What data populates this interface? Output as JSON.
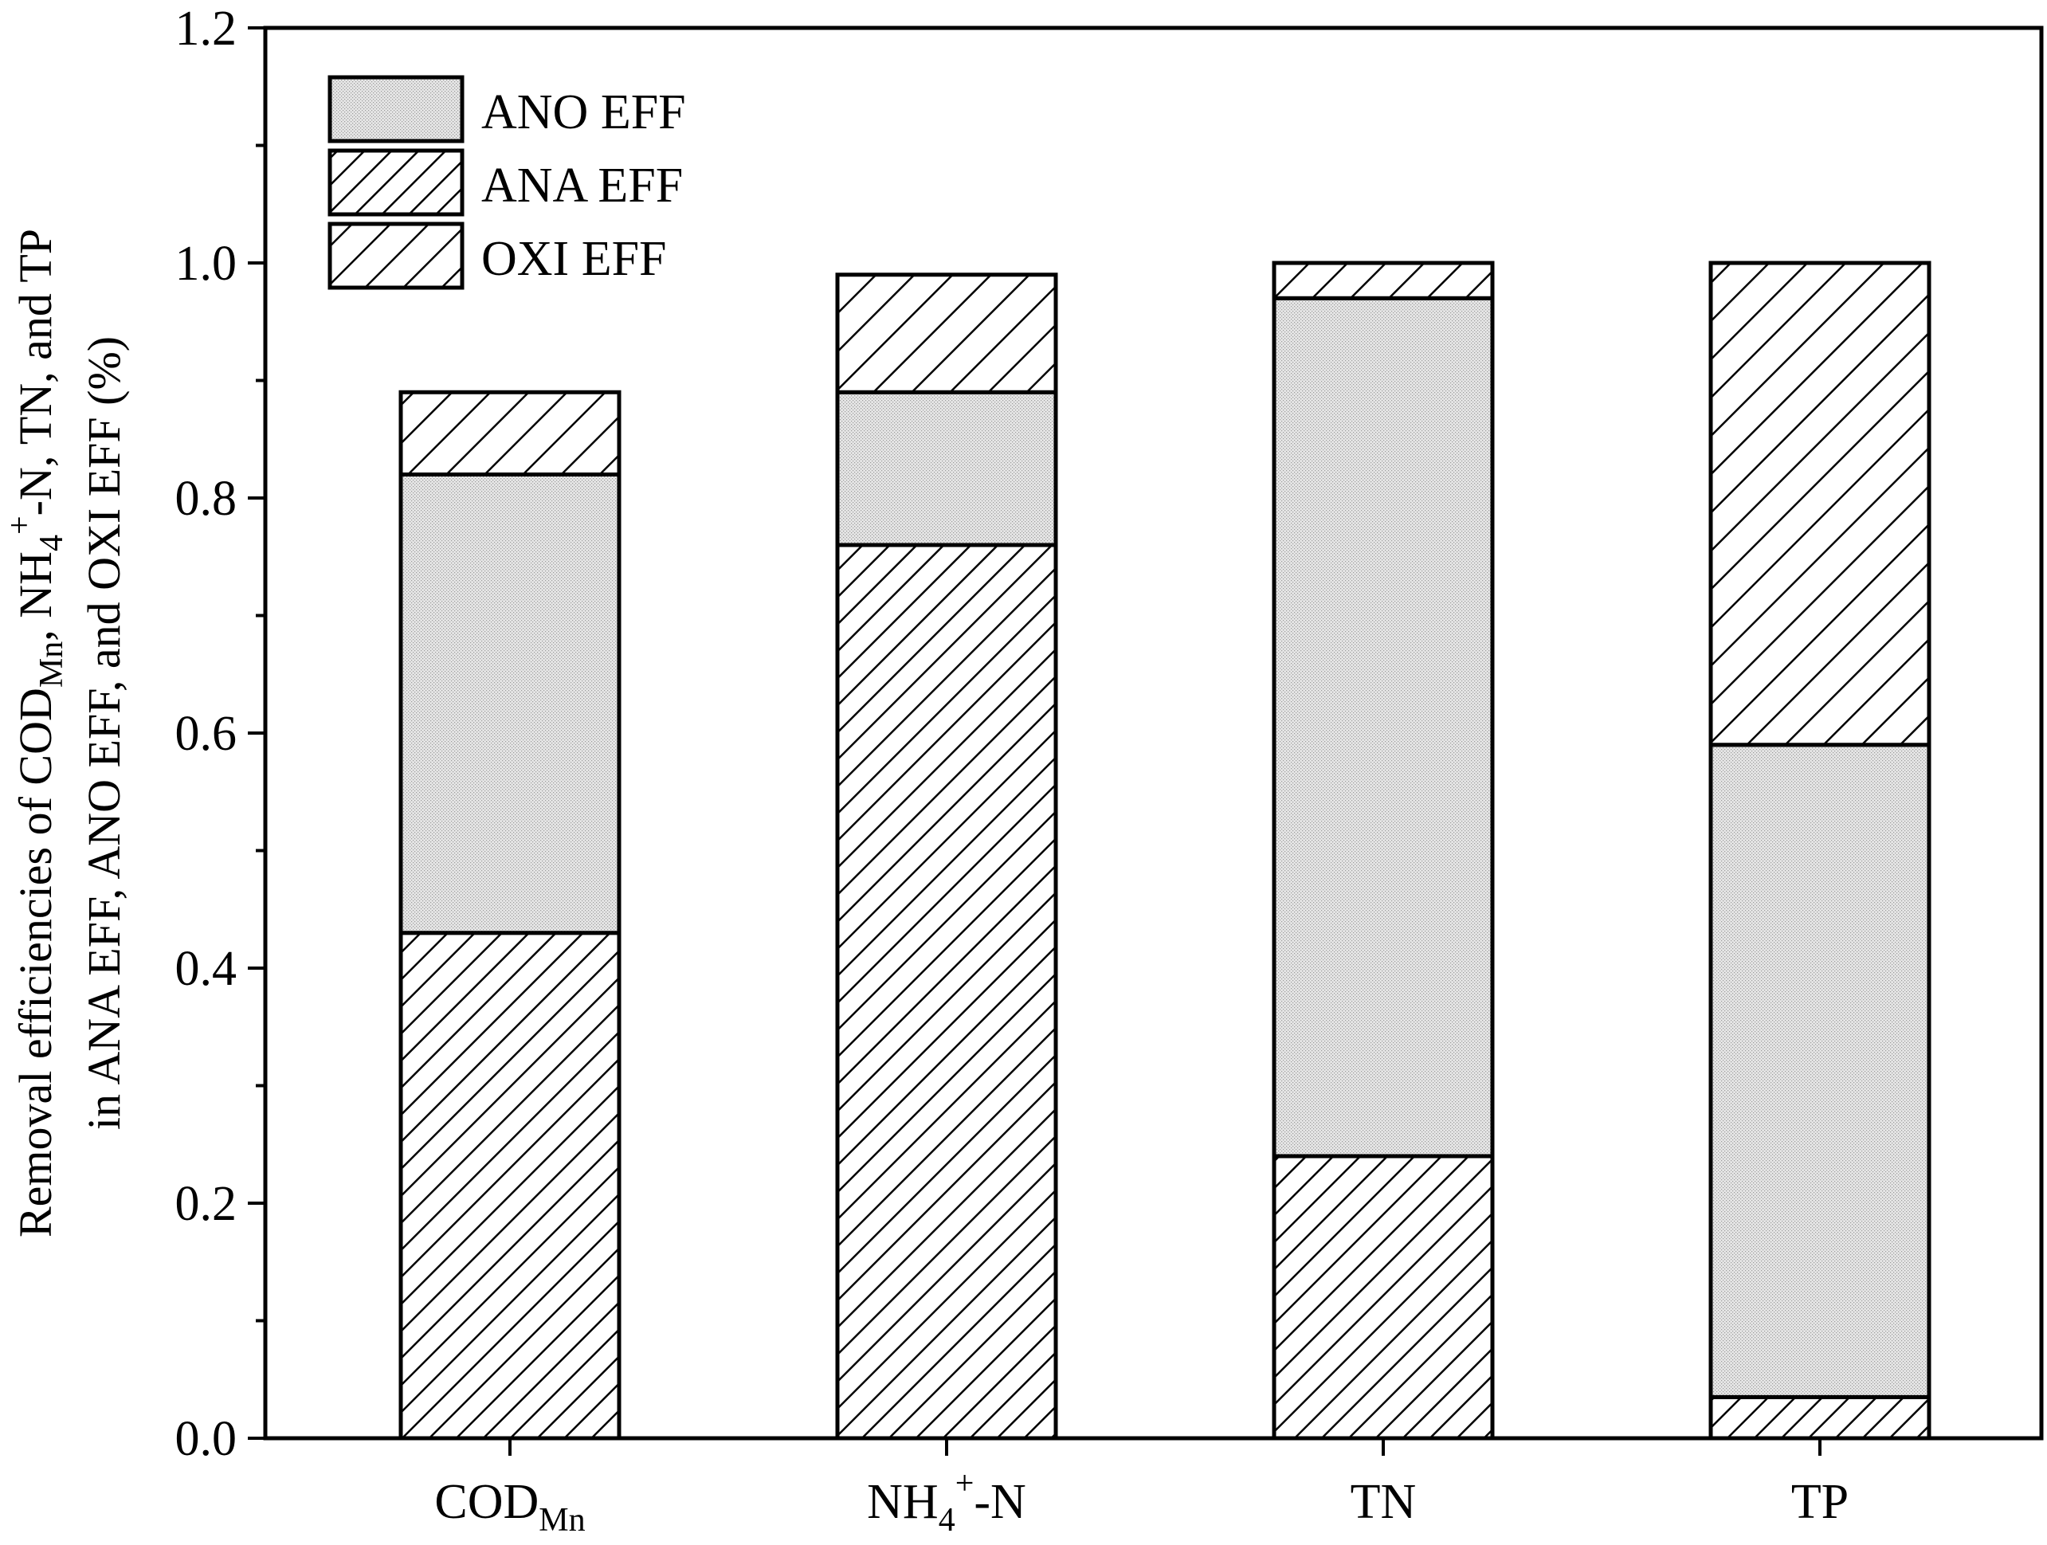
{
  "chart_data": {
    "type": "bar",
    "stacked": true,
    "categories": [
      {
        "base": "COD",
        "sub": "Mn",
        "sup": "",
        "rest": ""
      },
      {
        "base": "NH",
        "sub": "4",
        "sup": "+",
        "rest": "-N"
      },
      {
        "base": "TN",
        "sub": "",
        "sup": "",
        "rest": ""
      },
      {
        "base": "TP",
        "sub": "",
        "sup": "",
        "rest": ""
      }
    ],
    "series": [
      {
        "name": "ANA EFF",
        "values": [
          0.43,
          0.76,
          0.24,
          0.035
        ],
        "pattern": "hatch-dense"
      },
      {
        "name": "ANO EFF",
        "values": [
          0.39,
          0.13,
          0.73,
          0.555
        ],
        "pattern": "dots"
      },
      {
        "name": "OXI EFF",
        "values": [
          0.07,
          0.1,
          0.03,
          0.41
        ],
        "pattern": "hatch-sparse"
      }
    ],
    "legend_order": [
      "ANO EFF",
      "ANA EFF",
      "OXI EFF"
    ],
    "ylim": [
      0.0,
      1.2
    ],
    "yticks": [
      "0.0",
      "0.2",
      "0.4",
      "0.6",
      "0.8",
      "1.0",
      "1.2"
    ],
    "ylabel_line1": "Removal efficiencies of COD",
    "ylabel_line1_sub": "Mn",
    "ylabel_line1_mid": ", NH",
    "ylabel_line1_sub2": "4",
    "ylabel_line1_sup": "+",
    "ylabel_line1_end": "-N, TN, and TP",
    "ylabel_line2": "in ANA EFF, ANO EFF, and OXI EFF (%)",
    "legend_position": "top-left",
    "grid": false
  }
}
